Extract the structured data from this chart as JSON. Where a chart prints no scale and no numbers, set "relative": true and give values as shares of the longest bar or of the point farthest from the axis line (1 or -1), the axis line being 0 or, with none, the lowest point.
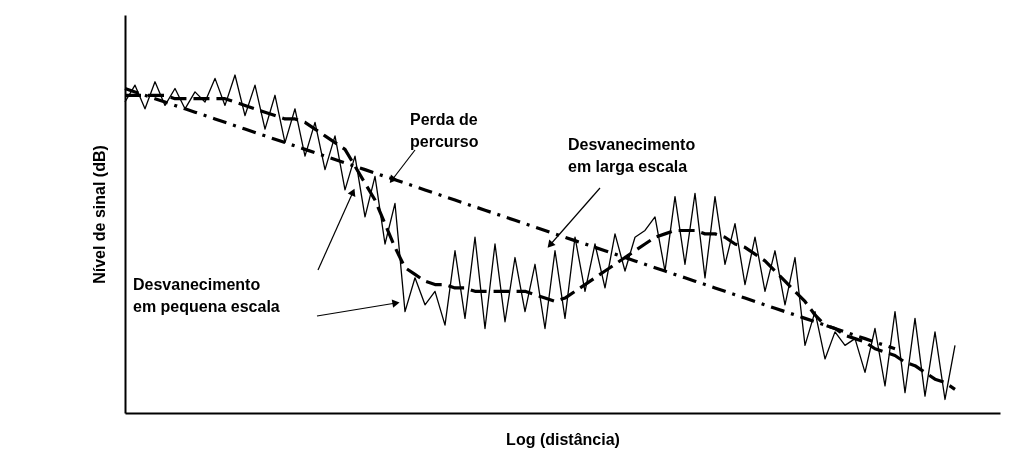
{
  "chart_data": {
    "type": "line",
    "relative": true,
    "xlabel": "Log (distância)",
    "ylabel": "Nível de sinal (dB)",
    "tick_labels": false,
    "categories": [
      null,
      null,
      null,
      null,
      null,
      null,
      null,
      null,
      null,
      null,
      null,
      null,
      null,
      null,
      null,
      null,
      null,
      null,
      null,
      null,
      null,
      null,
      null,
      null,
      null,
      null,
      null,
      null,
      null,
      null,
      null,
      null,
      null,
      null,
      null,
      null,
      null,
      null,
      null,
      null,
      null,
      null,
      null,
      null,
      null,
      null,
      null,
      null,
      null,
      null,
      null,
      null,
      null,
      null,
      null,
      null,
      null,
      null,
      null,
      null,
      null,
      null,
      null,
      null,
      null,
      null,
      null,
      null,
      null,
      null,
      null,
      null,
      null,
      null,
      null,
      null,
      null,
      null,
      null,
      null,
      null,
      null,
      null,
      null
    ],
    "series": [
      {
        "color": "#000000",
        "line_style": "solid",
        "values": [
          0.92,
          0.97,
          0.9,
          0.98,
          0.91,
          0.96,
          0.9,
          0.95,
          0.92,
          0.99,
          0.91,
          1.0,
          0.88,
          0.97,
          0.84,
          0.94,
          0.8,
          0.9,
          0.76,
          0.86,
          0.72,
          0.82,
          0.66,
          0.76,
          0.58,
          0.7,
          0.5,
          0.62,
          0.3,
          0.4,
          0.32,
          0.36,
          0.26,
          0.48,
          0.28,
          0.52,
          0.25,
          0.5,
          0.27,
          0.46,
          0.3,
          0.44,
          0.25,
          0.48,
          0.28,
          0.52,
          0.36,
          0.5,
          0.37,
          0.53,
          0.42,
          0.52,
          0.54,
          0.58,
          0.42,
          0.64,
          0.44,
          0.65,
          0.4,
          0.64,
          0.44,
          0.56,
          0.38,
          0.52,
          0.36,
          0.48,
          0.32,
          0.46,
          0.2,
          0.3,
          0.16,
          0.24,
          0.2,
          0.22,
          0.12,
          0.25,
          0.08,
          0.3,
          0.06,
          0.28,
          0.05,
          0.24,
          0.04,
          0.2
        ]
      },
      {
        "color": "#000000",
        "line_style": "dashed",
        "values": [
          0.94,
          0.94,
          0.94,
          0.94,
          0.94,
          0.93,
          0.93,
          0.93,
          0.93,
          0.93,
          0.93,
          0.92,
          0.91,
          0.9,
          0.89,
          0.88,
          0.87,
          0.87,
          0.86,
          0.84,
          0.82,
          0.8,
          0.78,
          0.73,
          0.68,
          0.63,
          0.56,
          0.49,
          0.43,
          0.41,
          0.39,
          0.38,
          0.38,
          0.37,
          0.37,
          0.36,
          0.36,
          0.36,
          0.36,
          0.36,
          0.36,
          0.35,
          0.34,
          0.33,
          0.34,
          0.36,
          0.38,
          0.4,
          0.42,
          0.44,
          0.46,
          0.48,
          0.5,
          0.52,
          0.53,
          0.54,
          0.54,
          0.54,
          0.53,
          0.53,
          0.52,
          0.5,
          0.49,
          0.47,
          0.45,
          0.42,
          0.39,
          0.36,
          0.33,
          0.29,
          0.26,
          0.25,
          0.23,
          0.22,
          0.21,
          0.19,
          0.18,
          0.17,
          0.15,
          0.14,
          0.12,
          0.1,
          0.09,
          0.07
        ]
      },
      {
        "color": "#000000",
        "line_style": "dashdot",
        "values": [
          0.96,
          0.95,
          0.94,
          0.93,
          0.92,
          0.91,
          0.9,
          0.89,
          0.88,
          0.87,
          0.86,
          0.85,
          0.84,
          0.83,
          0.82,
          0.81,
          0.8,
          0.79,
          0.78,
          0.77,
          0.76,
          0.75,
          0.74,
          0.73,
          0.72,
          0.71,
          0.7,
          0.69,
          0.68,
          0.67,
          0.66,
          0.65,
          0.64,
          0.63,
          0.62,
          0.61,
          0.6,
          0.59,
          0.58,
          0.57,
          0.56,
          0.55,
          0.54,
          0.53,
          0.52,
          0.51,
          0.5,
          0.49,
          0.48,
          0.47,
          0.46,
          0.45,
          0.44,
          0.43,
          0.42,
          0.41,
          0.4,
          0.39,
          0.38,
          0.37,
          0.36,
          0.35,
          0.34,
          0.33,
          0.32,
          0.31,
          0.3,
          0.29,
          0.28,
          0.27,
          0.26,
          0.25,
          0.24,
          0.23,
          0.22,
          0.21,
          0.2,
          0.19,
          null,
          null,
          null,
          null,
          null,
          null
        ]
      }
    ],
    "annotations": [
      "Perda de percurso",
      "Desvanecimento em larga escala",
      "Desvanecimento em pequena escala"
    ]
  }
}
